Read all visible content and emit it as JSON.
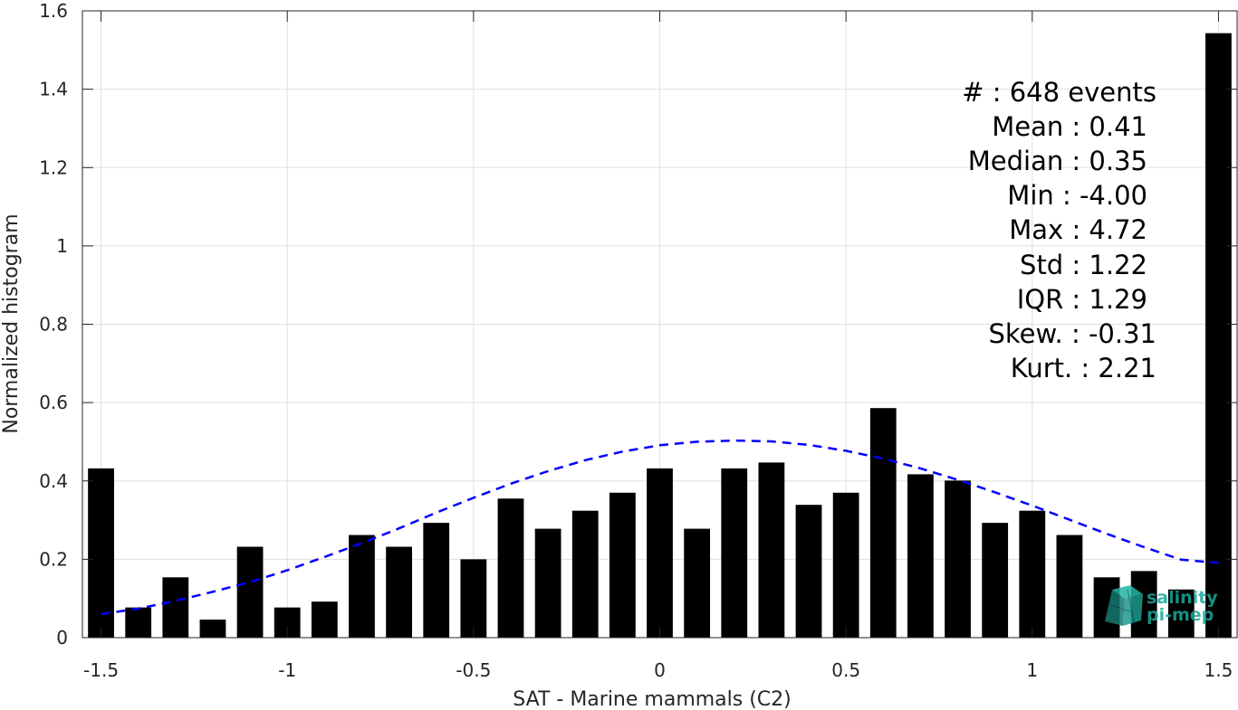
{
  "chart_data": {
    "type": "bar",
    "xlabel": "SAT - Marine mammals (C2)",
    "ylabel": "Normalized histogram",
    "xlim": [
      -1.55,
      1.55
    ],
    "ylim": [
      0,
      1.6
    ],
    "grid": true,
    "xticks": [
      -1.5,
      -1,
      -0.5,
      0,
      0.5,
      1,
      1.5
    ],
    "xtick_labels": [
      "-1.5",
      "-1",
      "-0.5",
      "0",
      "0.5",
      "1",
      "1.5"
    ],
    "yticks": [
      0,
      0.2,
      0.4,
      0.6,
      0.8,
      1,
      1.2,
      1.4,
      1.6
    ],
    "ytick_labels": [
      "0",
      "0.2",
      "0.4",
      "0.6",
      "0.8",
      "1",
      "1.2",
      "1.4",
      "1.6"
    ],
    "bar_width": 0.07,
    "x": [
      -1.5,
      -1.4,
      -1.3,
      -1.2,
      -1.1,
      -1.0,
      -0.9,
      -0.8,
      -0.7,
      -0.6,
      -0.5,
      -0.4,
      -0.3,
      -0.2,
      -0.1,
      0.0,
      0.1,
      0.2,
      0.3,
      0.4,
      0.5,
      0.6,
      0.7,
      0.8,
      0.9,
      1.0,
      1.1,
      1.2,
      1.3,
      1.4,
      1.5
    ],
    "values": [
      0.432,
      0.077,
      0.154,
      0.046,
      0.232,
      0.077,
      0.092,
      0.262,
      0.232,
      0.293,
      0.2,
      0.355,
      0.278,
      0.324,
      0.37,
      0.432,
      0.278,
      0.432,
      0.447,
      0.339,
      0.37,
      0.586,
      0.417,
      0.401,
      0.293,
      0.324,
      0.262,
      0.154,
      0.17,
      0.123,
      1.543
    ],
    "bar_color": "#000000",
    "fit_curve": {
      "style": "dashed",
      "color": "#0000ff",
      "x": [
        -1.5,
        -1.4,
        -1.3,
        -1.2,
        -1.1,
        -1.0,
        -0.9,
        -0.8,
        -0.7,
        -0.6,
        -0.5,
        -0.4,
        -0.3,
        -0.2,
        -0.1,
        0.0,
        0.1,
        0.2,
        0.3,
        0.4,
        0.5,
        0.6,
        0.7,
        0.8,
        0.9,
        1.0,
        1.1,
        1.2,
        1.3,
        1.4,
        1.5
      ],
      "y": [
        0.06,
        0.074,
        0.094,
        0.117,
        0.142,
        0.172,
        0.206,
        0.241,
        0.279,
        0.319,
        0.357,
        0.393,
        0.425,
        0.453,
        0.475,
        0.491,
        0.5,
        0.503,
        0.501,
        0.492,
        0.477,
        0.457,
        0.432,
        0.403,
        0.371,
        0.337,
        0.301,
        0.265,
        0.231,
        0.199,
        0.191
      ]
    },
    "annotations": [
      "#  : 648 events",
      "Mean : 0.41",
      "Median : 0.35",
      "Min : -4.00",
      "Max : 4.72",
      "Std : 1.22",
      "IQR : 1.29",
      "Skew. : -0.31",
      "Kurt. : 2.21"
    ]
  },
  "logo": {
    "line1": "salinity",
    "line2": "pi-mep",
    "color": "#1aa89a"
  }
}
